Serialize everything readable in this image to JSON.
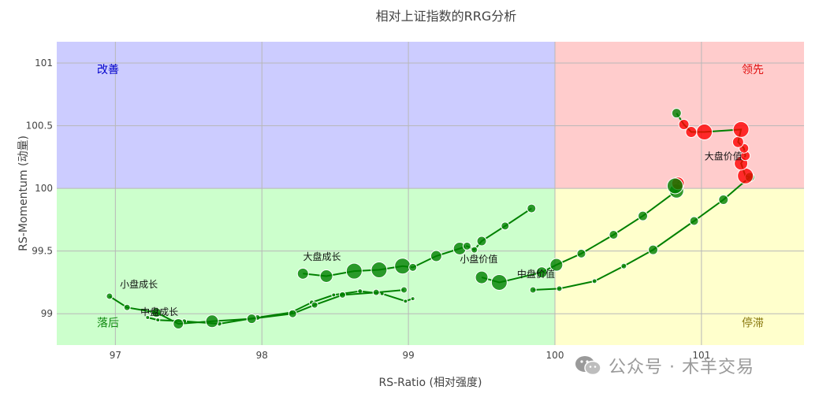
{
  "chart_data": {
    "type": "scatter",
    "title": "相对上证指数的RRG分析",
    "xlabel": "RS-Ratio (相对强度)",
    "ylabel": "RS-Momentum (动量)",
    "xlim": [
      96.6,
      101.7
    ],
    "ylim": [
      98.75,
      101.17
    ],
    "xticks": [
      97,
      98,
      99,
      100,
      101
    ],
    "xtick_labels": [
      "97",
      "98",
      "99",
      "100",
      "101"
    ],
    "yticks": [
      99,
      99.5,
      100,
      100.5,
      101
    ],
    "ytick_labels": [
      "99",
      "99.5",
      "100",
      "100.5",
      "101"
    ],
    "grid": true,
    "center": [
      100,
      100
    ],
    "quadrants": [
      {
        "name": "改善",
        "color": "#ccccff",
        "text_color": "#0000cc",
        "label_at": [
          96.95,
          100.95
        ]
      },
      {
        "name": "领先",
        "color": "#ffcccc",
        "text_color": "#e01010",
        "label_at": [
          101.35,
          100.95
        ]
      },
      {
        "name": "落后",
        "color": "#ccffcc",
        "text_color": "#138a13",
        "label_at": [
          96.95,
          98.93
        ]
      },
      {
        "name": "停滞",
        "color": "#ffffcc",
        "text_color": "#8a7a10",
        "label_at": [
          101.35,
          98.93
        ]
      }
    ],
    "series": [
      {
        "name": "大盘价值",
        "label_at": [
          101.15,
          100.23
        ],
        "color": "#008000",
        "points": [
          {
            "x": 99.85,
            "y": 99.19
          },
          {
            "x": 100.03,
            "y": 99.2
          },
          {
            "x": 100.27,
            "y": 99.26
          },
          {
            "x": 100.47,
            "y": 99.38
          },
          {
            "x": 100.67,
            "y": 99.51
          },
          {
            "x": 100.95,
            "y": 99.74
          },
          {
            "x": 101.15,
            "y": 99.91
          },
          {
            "x": 101.33,
            "y": 100.09
          },
          {
            "x": 101.3,
            "y": 100.1
          },
          {
            "x": 101.27,
            "y": 100.2
          },
          {
            "x": 101.3,
            "y": 100.26
          },
          {
            "x": 101.29,
            "y": 100.32
          },
          {
            "x": 101.25,
            "y": 100.37
          },
          {
            "x": 101.27,
            "y": 100.47
          },
          {
            "x": 101.02,
            "y": 100.45
          },
          {
            "x": 100.93,
            "y": 100.45
          },
          {
            "x": 100.88,
            "y": 100.51
          },
          {
            "x": 100.83,
            "y": 100.6
          }
        ],
        "sizes": [
          8,
          7,
          6,
          7,
          12,
          11,
          12,
          12,
          20,
          17,
          12,
          12,
          14,
          20,
          20,
          14,
          13,
          12
        ]
      },
      {
        "name": "中盘价值",
        "label_at": [
          99.87,
          99.29
        ],
        "color": "#008000",
        "points": [
          {
            "x": 99.5,
            "y": 99.29
          },
          {
            "x": 99.62,
            "y": 99.25
          },
          {
            "x": 99.91,
            "y": 99.33
          },
          {
            "x": 100.01,
            "y": 99.39
          },
          {
            "x": 100.18,
            "y": 99.48
          },
          {
            "x": 100.4,
            "y": 99.63
          },
          {
            "x": 100.6,
            "y": 99.78
          },
          {
            "x": 100.83,
            "y": 99.98
          },
          {
            "x": 100.84,
            "y": 100.04
          },
          {
            "x": 100.82,
            "y": 100.02
          }
        ],
        "sizes": [
          16,
          20,
          14,
          16,
          11,
          11,
          12,
          18,
          16,
          20
        ]
      },
      {
        "name": "小盘价值",
        "label_at": [
          99.48,
          99.41
        ],
        "color": "#008000",
        "points": [
          {
            "x": 99.03,
            "y": 99.12
          },
          {
            "x": 98.98,
            "y": 99.1
          },
          {
            "x": 98.82,
            "y": 99.16
          },
          {
            "x": 98.67,
            "y": 99.18
          },
          {
            "x": 98.49,
            "y": 99.15
          },
          {
            "x": 98.34,
            "y": 99.09
          },
          {
            "x": 98.2,
            "y": 99.01
          },
          {
            "x": 97.97,
            "y": 98.97
          },
          {
            "x": 97.71,
            "y": 98.92
          },
          {
            "x": 97.47,
            "y": 98.94
          },
          {
            "x": 97.29,
            "y": 98.95
          },
          {
            "x": 97.22,
            "y": 98.97
          }
        ],
        "sizes": [
          5,
          5,
          5,
          6,
          5,
          6,
          6,
          7,
          6,
          6,
          5,
          5
        ]
      },
      {
        "name": "大盘成长",
        "label_at": [
          98.41,
          99.43
        ],
        "color": "#008000",
        "points": [
          {
            "x": 98.28,
            "y": 99.32
          },
          {
            "x": 98.44,
            "y": 99.3
          },
          {
            "x": 98.63,
            "y": 99.34
          },
          {
            "x": 98.8,
            "y": 99.35
          },
          {
            "x": 98.96,
            "y": 99.38
          },
          {
            "x": 99.03,
            "y": 99.37
          },
          {
            "x": 99.19,
            "y": 99.46
          },
          {
            "x": 99.35,
            "y": 99.52
          },
          {
            "x": 99.4,
            "y": 99.54
          },
          {
            "x": 99.45,
            "y": 99.51
          },
          {
            "x": 99.5,
            "y": 99.58
          },
          {
            "x": 99.66,
            "y": 99.7
          },
          {
            "x": 99.84,
            "y": 99.84
          }
        ],
        "sizes": [
          14,
          16,
          20,
          20,
          20,
          10,
          14,
          16,
          10,
          8,
          12,
          10,
          11
        ]
      },
      {
        "name": "小盘成长",
        "label_at": [
          97.16,
          99.21
        ],
        "color": "#008000",
        "points": [
          {
            "x": 96.96,
            "y": 99.14
          },
          {
            "x": 97.08,
            "y": 99.05
          },
          {
            "x": 97.28,
            "y": 99.01
          },
          {
            "x": 97.43,
            "y": 98.92
          },
          {
            "x": 97.66,
            "y": 98.94
          },
          {
            "x": 97.93,
            "y": 98.96
          },
          {
            "x": 98.21,
            "y": 99.0
          },
          {
            "x": 98.36,
            "y": 99.07
          },
          {
            "x": 98.55,
            "y": 99.15
          },
          {
            "x": 98.78,
            "y": 99.17
          },
          {
            "x": 98.97,
            "y": 99.19
          }
        ],
        "sizes": [
          8,
          8,
          12,
          13,
          16,
          12,
          10,
          8,
          8,
          8,
          8
        ]
      },
      {
        "name": "中盘成长",
        "label_at": [
          97.3,
          98.99
        ],
        "color": "#008000",
        "points": []
      }
    ],
    "leading_marker_color": "#ff0000"
  },
  "watermark": {
    "text": "公众号 · 木羊交易"
  }
}
